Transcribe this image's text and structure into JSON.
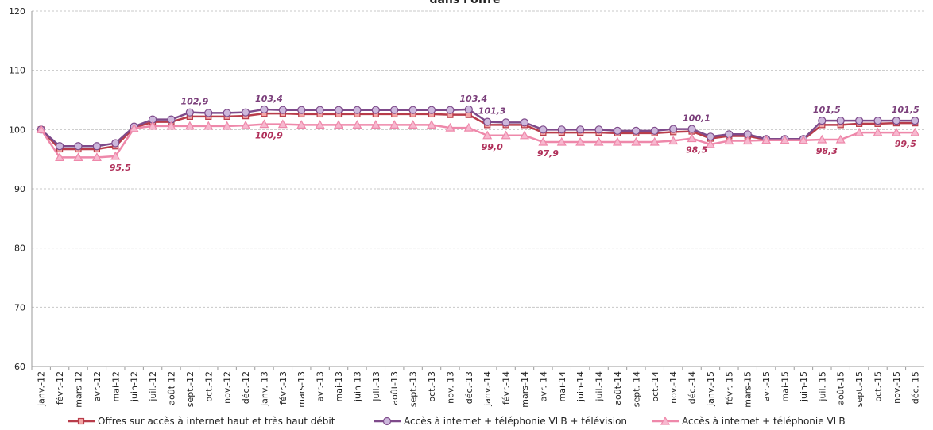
{
  "chart_data": {
    "type": "line",
    "title": "dans l'offre",
    "categories": [
      "janv.-12",
      "févr.-12",
      "mars-12",
      "avr.-12",
      "mai-12",
      "juin-12",
      "juil.-12",
      "août-12",
      "sept.-12",
      "oct.-12",
      "nov.-12",
      "déc.-12",
      "janv.-13",
      "févr.-13",
      "mars-13",
      "avr.-13",
      "mai-13",
      "juin-13",
      "juil.-13",
      "août-13",
      "sept.-13",
      "oct.-13",
      "nov.-13",
      "déc.-13",
      "janv.-14",
      "févr.-14",
      "mars-14",
      "avr.-14",
      "mai-14",
      "juin-14",
      "juil.-14",
      "août-14",
      "sept.-14",
      "oct.-14",
      "nov.-14",
      "déc.-14",
      "janv.-15",
      "févr.-15",
      "mars-15",
      "avr.-15",
      "mai-15",
      "juin-15",
      "juil.-15",
      "août-15",
      "sept.-15",
      "oct.-15",
      "nov.-15",
      "déc.-15"
    ],
    "series": [
      {
        "name": "Offres sur accès à internet haut et très haut débit",
        "color": "#b83c4a",
        "marker": "square",
        "values": [
          100,
          96.7,
          96.7,
          96.7,
          97.2,
          100.3,
          101.3,
          101.3,
          102.2,
          102.2,
          102.2,
          102.3,
          102.7,
          102.7,
          102.6,
          102.6,
          102.6,
          102.6,
          102.6,
          102.6,
          102.6,
          102.6,
          102.5,
          102.5,
          100.8,
          100.8,
          100.8,
          99.5,
          99.5,
          99.5,
          99.5,
          99.4,
          99.4,
          99.4,
          99.6,
          99.7,
          98.5,
          98.9,
          98.9,
          98.3,
          98.3,
          98.3,
          100.8,
          100.8,
          101.0,
          101.0,
          101.1,
          101.1
        ]
      },
      {
        "name": "Accès à internet + téléphonie VLB + télévision",
        "color": "#7e4a8a",
        "marker": "circle",
        "values": [
          100,
          97.2,
          97.2,
          97.2,
          97.7,
          100.5,
          101.7,
          101.7,
          102.9,
          102.8,
          102.8,
          102.9,
          103.4,
          103.3,
          103.3,
          103.3,
          103.3,
          103.3,
          103.3,
          103.3,
          103.3,
          103.3,
          103.3,
          103.4,
          101.3,
          101.2,
          101.2,
          100.0,
          100.0,
          100.0,
          100.0,
          99.8,
          99.8,
          99.8,
          100.1,
          100.1,
          98.8,
          99.2,
          99.2,
          98.4,
          98.4,
          98.4,
          101.5,
          101.5,
          101.5,
          101.5,
          101.5,
          101.5
        ],
        "value_labels": [
          null,
          null,
          null,
          null,
          null,
          null,
          null,
          null,
          "102,9",
          null,
          null,
          null,
          "103,4",
          null,
          null,
          null,
          null,
          null,
          null,
          null,
          null,
          null,
          null,
          "103,4",
          "101,3",
          null,
          null,
          null,
          null,
          null,
          null,
          null,
          null,
          null,
          null,
          "100,1",
          null,
          null,
          null,
          null,
          null,
          null,
          "101,5",
          null,
          null,
          null,
          null,
          "101,5"
        ]
      },
      {
        "name": "Accès à internet + téléphonie VLB",
        "color": "#ee88aa",
        "marker": "triangle",
        "values": [
          100,
          95.3,
          95.3,
          95.3,
          95.5,
          100.2,
          100.6,
          100.6,
          100.6,
          100.6,
          100.6,
          100.7,
          100.9,
          100.9,
          100.8,
          100.8,
          100.8,
          100.8,
          100.8,
          100.8,
          100.8,
          100.8,
          100.3,
          100.3,
          99.0,
          99.0,
          99.0,
          97.9,
          97.9,
          97.9,
          97.9,
          97.9,
          97.9,
          97.9,
          98.1,
          98.5,
          97.5,
          98.1,
          98.1,
          98.2,
          98.2,
          98.2,
          98.3,
          98.3,
          99.5,
          99.5,
          99.5,
          99.5
        ],
        "value_labels": [
          null,
          null,
          null,
          null,
          "95,5",
          null,
          null,
          null,
          null,
          null,
          null,
          null,
          "100,9",
          null,
          null,
          null,
          null,
          null,
          null,
          null,
          null,
          null,
          null,
          null,
          "99,0",
          null,
          null,
          "97,9",
          null,
          null,
          null,
          null,
          null,
          null,
          null,
          "98,5",
          null,
          null,
          null,
          null,
          null,
          null,
          "98,3",
          null,
          null,
          null,
          null,
          "99,5"
        ]
      }
    ],
    "ylim": [
      60,
      120
    ],
    "yticks": [
      60,
      70,
      80,
      90,
      100,
      110,
      120
    ],
    "grid": true
  }
}
